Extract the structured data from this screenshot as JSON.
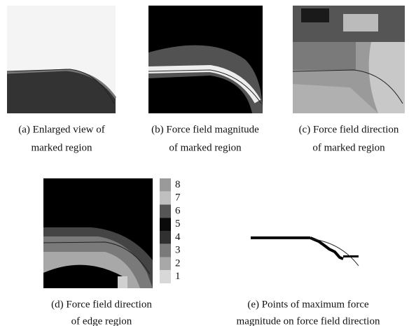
{
  "panels": [
    {
      "caption": [
        "(a) Enlarged view of",
        "marked region"
      ]
    },
    {
      "caption": [
        "(b) Force field magnitude",
        "of marked region"
      ]
    },
    {
      "caption": [
        "(c) Force field direction",
        "of marked region"
      ]
    },
    {
      "caption": [
        "(d) Force field direction",
        "of edge region"
      ]
    },
    {
      "caption": [
        "(e) Points of maximum force",
        "magnitude  on force field direction"
      ]
    }
  ],
  "colorbar": {
    "labels": [
      "8",
      "7",
      "6",
      "5",
      "4",
      "3",
      "2",
      "1"
    ]
  }
}
